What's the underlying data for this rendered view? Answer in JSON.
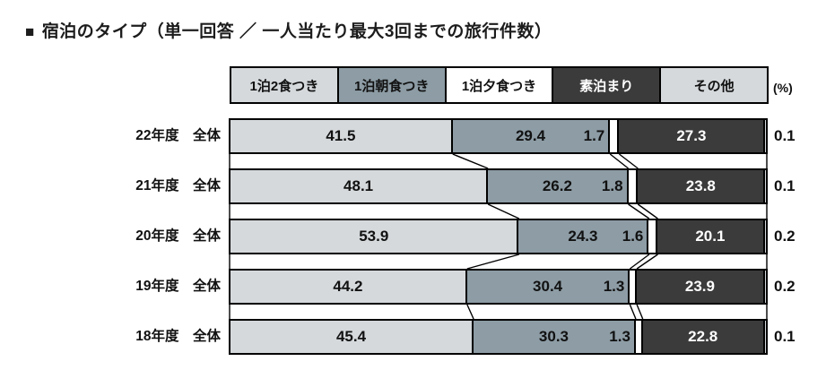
{
  "title": {
    "bullet": "■",
    "text": "宿泊のタイプ（単一回答 ／ 一人当たり最大3回までの旅行件数）"
  },
  "unit_label": "(%)",
  "colors": {
    "light_gray": "#d5d9dc",
    "slate_gray": "#8d9ca5",
    "white": "#ffffff",
    "dark_gray": "#3b3b3b",
    "border": "#000000"
  },
  "chart_data": {
    "type": "bar",
    "stacked": true,
    "orientation": "horizontal",
    "title": "宿泊のタイプ（単一回答 ／ 一人当たり最大3回までの旅行件数）",
    "unit": "%",
    "xlim": [
      0,
      100
    ],
    "legend_position": "top",
    "grid": false,
    "categories": [
      "22年度　全体",
      "21年度　全体",
      "20年度　全体",
      "19年度　全体",
      "18年度　全体"
    ],
    "legend": [
      "1泊2食つき",
      "1泊朝食つき",
      "1泊夕食つき",
      "素泊まり",
      "その他"
    ],
    "series": [
      {
        "name": "1泊2食つき",
        "color": "#d5d9dc",
        "text_color": "#111111",
        "values": [
          41.5,
          48.1,
          53.9,
          44.2,
          45.4
        ]
      },
      {
        "name": "1泊朝食つき",
        "color": "#8d9ca5",
        "text_color": "#111111",
        "values": [
          29.4,
          26.2,
          24.3,
          30.4,
          30.3
        ]
      },
      {
        "name": "1泊夕食つき",
        "color": "#ffffff",
        "text_color": "#111111",
        "values": [
          1.7,
          1.8,
          1.6,
          1.3,
          1.3
        ]
      },
      {
        "name": "素泊まり",
        "color": "#3b3b3b",
        "text_color": "#ffffff",
        "values": [
          27.3,
          23.8,
          20.1,
          23.9,
          22.8
        ]
      },
      {
        "name": "その他",
        "color": "#d5d9dc",
        "text_color": "#111111",
        "values": [
          0.1,
          0.1,
          0.2,
          0.2,
          0.1
        ]
      }
    ]
  }
}
